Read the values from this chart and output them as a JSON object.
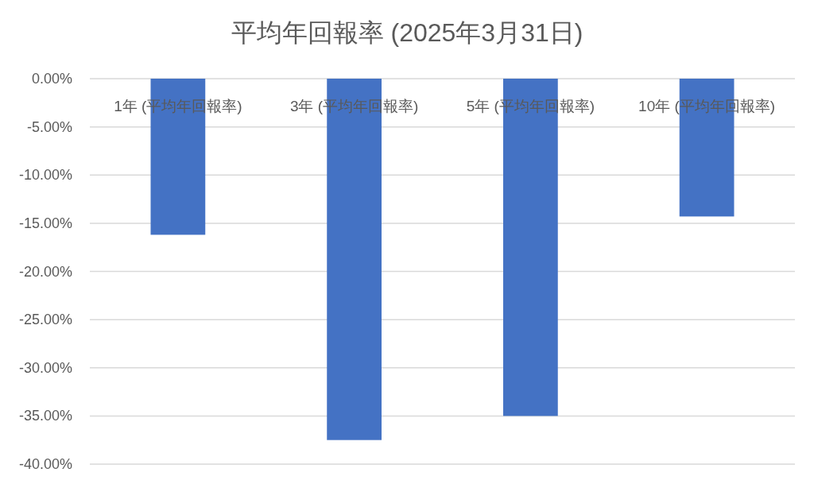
{
  "chart_data": {
    "type": "bar",
    "title": "平均年回報率 (2025年3月31日)",
    "categories": [
      "1年 (平均年回報率)",
      "3年 (平均年回報率)",
      "5年 (平均年回報率)",
      "10年 (平均年回報率)"
    ],
    "values": [
      -16.2,
      -37.5,
      -35.0,
      -14.3
    ],
    "color": "#4472c4",
    "ylim": [
      -40,
      0
    ],
    "yticks": [
      {
        "value": -40,
        "label": "-40.00%"
      },
      {
        "value": -35,
        "label": "-35.00%"
      },
      {
        "value": -30,
        "label": "-30.00%"
      },
      {
        "value": -25,
        "label": "-25.00%"
      },
      {
        "value": -20,
        "label": "-20.00%"
      },
      {
        "value": -15,
        "label": "-15.00%"
      },
      {
        "value": -10,
        "label": "-10.00%"
      },
      {
        "value": -5,
        "label": "-5.00%"
      },
      {
        "value": 0,
        "label": "0.00%"
      }
    ],
    "grid": "y"
  }
}
